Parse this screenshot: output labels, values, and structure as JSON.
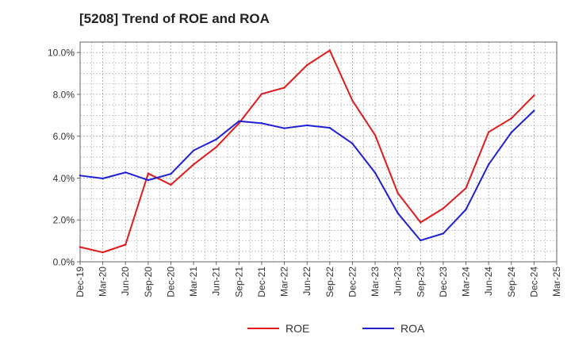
{
  "chart_data": {
    "type": "line",
    "title": "[5208]  Trend of ROE and ROA",
    "xlabel": "",
    "ylabel": "",
    "categories": [
      "Dec-19",
      "Mar-20",
      "Jun-20",
      "Sep-20",
      "Dec-20",
      "Mar-21",
      "Jun-21",
      "Sep-21",
      "Dec-21",
      "Mar-22",
      "Jun-22",
      "Sep-22",
      "Dec-22",
      "Mar-23",
      "Jun-23",
      "Sep-23",
      "Dec-23",
      "Mar-24",
      "Jun-24",
      "Sep-24",
      "Dec-24",
      "Mar-25"
    ],
    "y_tick_labels": [
      "0.0%",
      "2.0%",
      "4.0%",
      "6.0%",
      "8.0%",
      "10.0%"
    ],
    "y_ticks": [
      0,
      2,
      4,
      6,
      8,
      10
    ],
    "ylim": [
      0,
      10.5
    ],
    "grid": true,
    "legend_position": "bottom",
    "series": [
      {
        "name": "ROE",
        "color": "#e31a1c",
        "values": [
          0.7,
          0.45,
          0.82,
          4.22,
          3.68,
          4.65,
          5.48,
          6.62,
          8.02,
          8.32,
          9.4,
          10.1,
          7.7,
          6.05,
          3.28,
          1.88,
          2.55,
          3.52,
          6.2,
          6.85,
          7.95,
          null
        ]
      },
      {
        "name": "ROA",
        "color": "#1f1fd6",
        "values": [
          4.12,
          3.98,
          4.27,
          3.9,
          4.2,
          5.32,
          5.85,
          6.72,
          6.62,
          6.38,
          6.52,
          6.4,
          5.65,
          4.25,
          2.32,
          1.02,
          1.35,
          2.5,
          4.65,
          6.18,
          7.22,
          null
        ]
      }
    ]
  }
}
